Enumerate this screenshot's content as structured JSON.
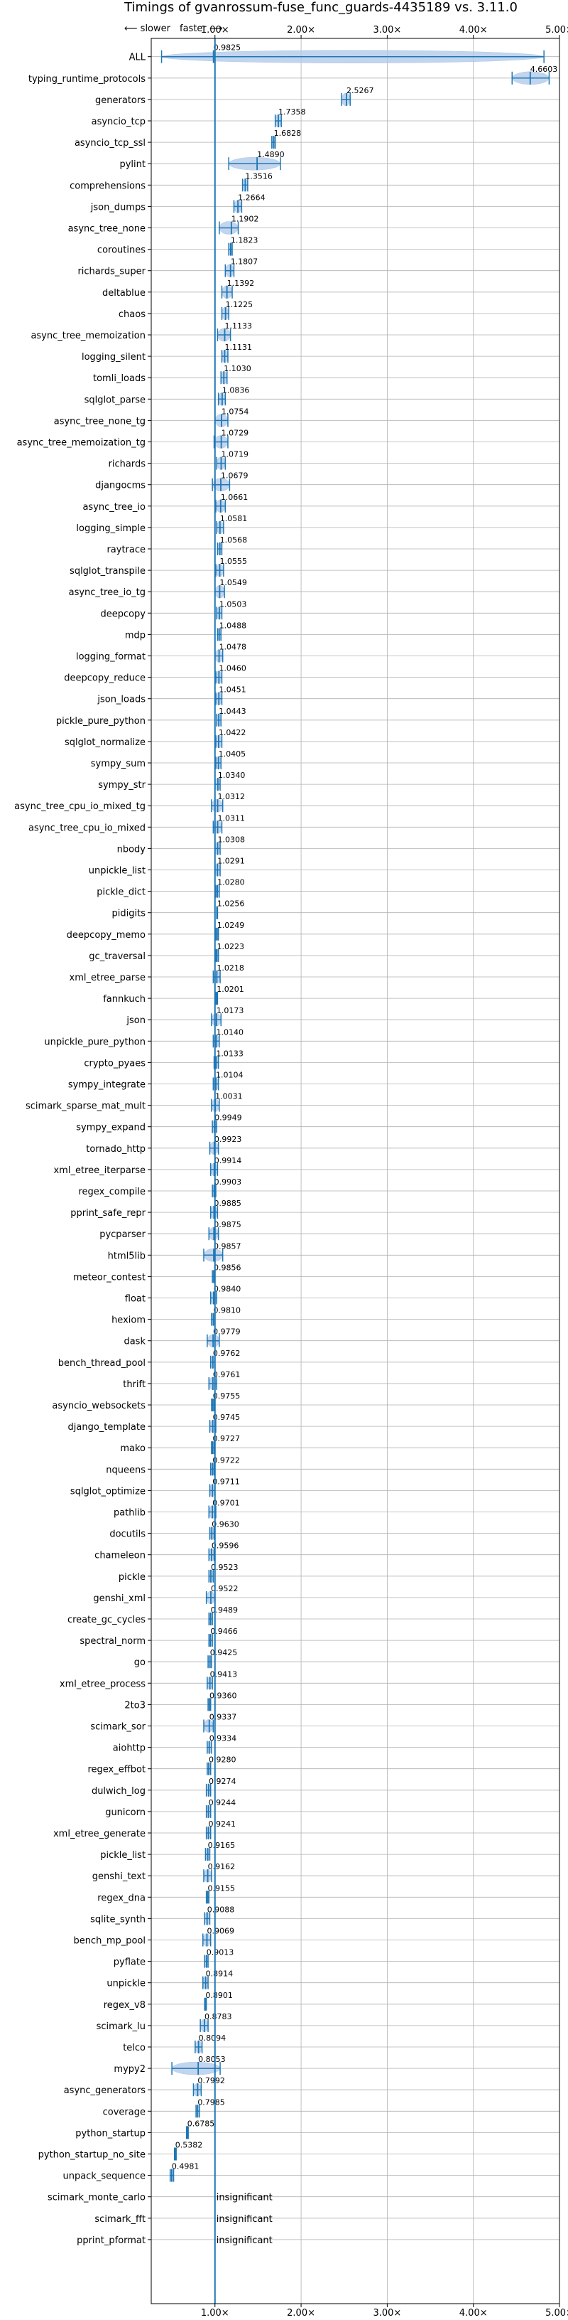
{
  "chart_data": {
    "type": "scatter",
    "title": "Timings of gvanrossum-fuse_func_guards-4435189 vs. 3.11.0",
    "direction_labels": {
      "slower": "⟵ slower",
      "faster": "faster ⟶"
    },
    "xlim": [
      0.26,
      5.0
    ],
    "x_ticks": [
      1.0,
      2.0,
      3.0,
      4.0,
      5.0
    ],
    "x_tick_labels": [
      "1.00×",
      "2.00×",
      "3.00×",
      "4.00×",
      "5.00×"
    ],
    "reference_line": 1.0,
    "grid": true,
    "colors": {
      "marker": "#1f77b4",
      "fill": "#aec7e8",
      "line": "#1f77b4",
      "grid": "#b0b0b0"
    },
    "benchmarks": [
      {
        "name": "ALL",
        "value": 0.9825,
        "label": "0.9825",
        "range": [
          0.38,
          4.82
        ]
      },
      {
        "name": "typing_runtime_protocols",
        "value": 4.6603,
        "label": "4.6603",
        "range": [
          4.45,
          4.88
        ]
      },
      {
        "name": "generators",
        "value": 2.5267,
        "label": "2.5267",
        "range": [
          2.47,
          2.57
        ]
      },
      {
        "name": "asyncio_tcp",
        "value": 1.7358,
        "label": "1.7358",
        "range": [
          1.7,
          1.77
        ]
      },
      {
        "name": "asyncio_tcp_ssl",
        "value": 1.6828,
        "label": "1.6828",
        "range": [
          1.66,
          1.7
        ]
      },
      {
        "name": "pylint",
        "value": 1.489,
        "label": "1.4890",
        "range": [
          1.16,
          1.76
        ]
      },
      {
        "name": "comprehensions",
        "value": 1.3516,
        "label": "1.3516",
        "range": [
          1.32,
          1.38
        ]
      },
      {
        "name": "json_dumps",
        "value": 1.2664,
        "label": "1.2664",
        "range": [
          1.22,
          1.31
        ]
      },
      {
        "name": "async_tree_none",
        "value": 1.1902,
        "label": "1.1902",
        "range": [
          1.05,
          1.27
        ]
      },
      {
        "name": "coroutines",
        "value": 1.1823,
        "label": "1.1823",
        "range": [
          1.16,
          1.2
        ]
      },
      {
        "name": "richards_super",
        "value": 1.1807,
        "label": "1.1807",
        "range": [
          1.12,
          1.22
        ]
      },
      {
        "name": "deltablue",
        "value": 1.1392,
        "label": "1.1392",
        "range": [
          1.08,
          1.2
        ]
      },
      {
        "name": "chaos",
        "value": 1.1225,
        "label": "1.1225",
        "range": [
          1.08,
          1.16
        ]
      },
      {
        "name": "async_tree_memoization",
        "value": 1.1133,
        "label": "1.1133",
        "range": [
          1.03,
          1.18
        ]
      },
      {
        "name": "logging_silent",
        "value": 1.1131,
        "label": "1.1131",
        "range": [
          1.08,
          1.15
        ]
      },
      {
        "name": "tomli_loads",
        "value": 1.103,
        "label": "1.1030",
        "range": [
          1.07,
          1.14
        ]
      },
      {
        "name": "sqlglot_parse",
        "value": 1.0836,
        "label": "1.0836",
        "range": [
          1.04,
          1.12
        ]
      },
      {
        "name": "async_tree_none_tg",
        "value": 1.0754,
        "label": "1.0754",
        "range": [
          1.0,
          1.15
        ]
      },
      {
        "name": "async_tree_memoization_tg",
        "value": 1.0729,
        "label": "1.0729",
        "range": [
          0.99,
          1.15
        ]
      },
      {
        "name": "richards",
        "value": 1.0719,
        "label": "1.0719",
        "range": [
          1.02,
          1.12
        ]
      },
      {
        "name": "djangocms",
        "value": 1.0679,
        "label": "1.0679",
        "range": [
          0.97,
          1.17
        ]
      },
      {
        "name": "async_tree_io",
        "value": 1.0661,
        "label": "1.0661",
        "range": [
          1.01,
          1.12
        ]
      },
      {
        "name": "logging_simple",
        "value": 1.0581,
        "label": "1.0581",
        "range": [
          1.02,
          1.1
        ]
      },
      {
        "name": "raytrace",
        "value": 1.0568,
        "label": "1.0568",
        "range": [
          1.03,
          1.08
        ]
      },
      {
        "name": "sqlglot_transpile",
        "value": 1.0555,
        "label": "1.0555",
        "range": [
          1.01,
          1.1
        ]
      },
      {
        "name": "async_tree_io_tg",
        "value": 1.0549,
        "label": "1.0549",
        "range": [
          1.0,
          1.11
        ]
      },
      {
        "name": "deepcopy",
        "value": 1.0503,
        "label": "1.0503",
        "range": [
          1.02,
          1.08
        ]
      },
      {
        "name": "mdp",
        "value": 1.0488,
        "label": "1.0488",
        "range": [
          1.03,
          1.07
        ]
      },
      {
        "name": "logging_format",
        "value": 1.0478,
        "label": "1.0478",
        "range": [
          1.0,
          1.09
        ]
      },
      {
        "name": "deepcopy_reduce",
        "value": 1.046,
        "label": "1.0460",
        "range": [
          1.01,
          1.08
        ]
      },
      {
        "name": "json_loads",
        "value": 1.0451,
        "label": "1.0451",
        "range": [
          1.01,
          1.08
        ]
      },
      {
        "name": "pickle_pure_python",
        "value": 1.0443,
        "label": "1.0443",
        "range": [
          1.02,
          1.07
        ]
      },
      {
        "name": "sqlglot_normalize",
        "value": 1.0422,
        "label": "1.0422",
        "range": [
          1.01,
          1.08
        ]
      },
      {
        "name": "sympy_sum",
        "value": 1.0405,
        "label": "1.0405",
        "range": [
          1.01,
          1.07
        ]
      },
      {
        "name": "sympy_str",
        "value": 1.034,
        "label": "1.0340",
        "range": [
          1.0,
          1.06
        ]
      },
      {
        "name": "async_tree_cpu_io_mixed_tg",
        "value": 1.0312,
        "label": "1.0312",
        "range": [
          0.96,
          1.09
        ]
      },
      {
        "name": "async_tree_cpu_io_mixed",
        "value": 1.0311,
        "label": "1.0311",
        "range": [
          0.98,
          1.08
        ]
      },
      {
        "name": "nbody",
        "value": 1.0308,
        "label": "1.0308",
        "range": [
          1.0,
          1.06
        ]
      },
      {
        "name": "unpickle_list",
        "value": 1.0291,
        "label": "1.0291",
        "range": [
          1.0,
          1.06
        ]
      },
      {
        "name": "pickle_dict",
        "value": 1.028,
        "label": "1.0280",
        "range": [
          1.01,
          1.05
        ]
      },
      {
        "name": "pidigits",
        "value": 1.0256,
        "label": "1.0256",
        "range": [
          1.02,
          1.03
        ]
      },
      {
        "name": "deepcopy_memo",
        "value": 1.0249,
        "label": "1.0249",
        "range": [
          1.01,
          1.04
        ]
      },
      {
        "name": "gc_traversal",
        "value": 1.0223,
        "label": "1.0223",
        "range": [
          1.01,
          1.04
        ]
      },
      {
        "name": "xml_etree_parse",
        "value": 1.0218,
        "label": "1.0218",
        "range": [
          0.98,
          1.06
        ]
      },
      {
        "name": "fannkuch",
        "value": 1.0201,
        "label": "1.0201",
        "range": [
          1.01,
          1.03
        ]
      },
      {
        "name": "json",
        "value": 1.0173,
        "label": "1.0173",
        "range": [
          0.96,
          1.07
        ]
      },
      {
        "name": "unpickle_pure_python",
        "value": 1.014,
        "label": "1.0140",
        "range": [
          0.98,
          1.05
        ]
      },
      {
        "name": "crypto_pyaes",
        "value": 1.0133,
        "label": "1.0133",
        "range": [
          0.99,
          1.04
        ]
      },
      {
        "name": "sympy_integrate",
        "value": 1.0104,
        "label": "1.0104",
        "range": [
          0.98,
          1.04
        ]
      },
      {
        "name": "scimark_sparse_mat_mult",
        "value": 1.0031,
        "label": "1.0031",
        "range": [
          0.96,
          1.05
        ]
      },
      {
        "name": "sympy_expand",
        "value": 0.9949,
        "label": "0.9949",
        "range": [
          0.97,
          1.02
        ]
      },
      {
        "name": "tornado_http",
        "value": 0.9923,
        "label": "0.9923",
        "range": [
          0.94,
          1.04
        ]
      },
      {
        "name": "xml_etree_iterparse",
        "value": 0.9914,
        "label": "0.9914",
        "range": [
          0.95,
          1.03
        ]
      },
      {
        "name": "regex_compile",
        "value": 0.9903,
        "label": "0.9903",
        "range": [
          0.97,
          1.01
        ]
      },
      {
        "name": "pprint_safe_repr",
        "value": 0.9885,
        "label": "0.9885",
        "range": [
          0.95,
          1.03
        ]
      },
      {
        "name": "pycparser",
        "value": 0.9875,
        "label": "0.9875",
        "range": [
          0.93,
          1.04
        ]
      },
      {
        "name": "html5lib",
        "value": 0.9857,
        "label": "0.9857",
        "range": [
          0.87,
          1.09
        ]
      },
      {
        "name": "meteor_contest",
        "value": 0.9856,
        "label": "0.9856",
        "range": [
          0.97,
          1.0
        ]
      },
      {
        "name": "float",
        "value": 0.984,
        "label": "0.9840",
        "range": [
          0.95,
          1.02
        ]
      },
      {
        "name": "hexiom",
        "value": 0.981,
        "label": "0.9810",
        "range": [
          0.96,
          1.0
        ]
      },
      {
        "name": "dask",
        "value": 0.9779,
        "label": "0.9779",
        "range": [
          0.91,
          1.05
        ]
      },
      {
        "name": "bench_thread_pool",
        "value": 0.9762,
        "label": "0.9762",
        "range": [
          0.95,
          1.0
        ]
      },
      {
        "name": "thrift",
        "value": 0.9761,
        "label": "0.9761",
        "range": [
          0.93,
          1.02
        ]
      },
      {
        "name": "asyncio_websockets",
        "value": 0.9755,
        "label": "0.9755",
        "range": [
          0.96,
          0.99
        ]
      },
      {
        "name": "django_template",
        "value": 0.9745,
        "label": "0.9745",
        "range": [
          0.94,
          1.01
        ]
      },
      {
        "name": "mako",
        "value": 0.9727,
        "label": "0.9727",
        "range": [
          0.96,
          0.99
        ]
      },
      {
        "name": "nqueens",
        "value": 0.9722,
        "label": "0.9722",
        "range": [
          0.95,
          0.99
        ]
      },
      {
        "name": "sqlglot_optimize",
        "value": 0.9711,
        "label": "0.9711",
        "range": [
          0.94,
          1.0
        ]
      },
      {
        "name": "pathlib",
        "value": 0.9701,
        "label": "0.9701",
        "range": [
          0.93,
          1.01
        ]
      },
      {
        "name": "docutils",
        "value": 0.963,
        "label": "0.9630",
        "range": [
          0.94,
          0.99
        ]
      },
      {
        "name": "chameleon",
        "value": 0.9596,
        "label": "0.9596",
        "range": [
          0.93,
          0.99
        ]
      },
      {
        "name": "pickle",
        "value": 0.9523,
        "label": "0.9523",
        "range": [
          0.93,
          0.98
        ]
      },
      {
        "name": "genshi_xml",
        "value": 0.9522,
        "label": "0.9522",
        "range": [
          0.9,
          1.0
        ]
      },
      {
        "name": "create_gc_cycles",
        "value": 0.9489,
        "label": "0.9489",
        "range": [
          0.93,
          0.97
        ]
      },
      {
        "name": "spectral_norm",
        "value": 0.9466,
        "label": "0.9466",
        "range": [
          0.93,
          0.97
        ]
      },
      {
        "name": "go",
        "value": 0.9425,
        "label": "0.9425",
        "range": [
          0.92,
          0.96
        ]
      },
      {
        "name": "xml_etree_process",
        "value": 0.9413,
        "label": "0.9413",
        "range": [
          0.91,
          0.97
        ]
      },
      {
        "name": "2to3",
        "value": 0.936,
        "label": "0.9360",
        "range": [
          0.92,
          0.95
        ]
      },
      {
        "name": "scimark_sor",
        "value": 0.9337,
        "label": "0.9337",
        "range": [
          0.87,
          0.98
        ]
      },
      {
        "name": "aiohttp",
        "value": 0.9334,
        "label": "0.9334",
        "range": [
          0.91,
          0.96
        ]
      },
      {
        "name": "regex_effbot",
        "value": 0.928,
        "label": "0.9280",
        "range": [
          0.91,
          0.95
        ]
      },
      {
        "name": "dulwich_log",
        "value": 0.9274,
        "label": "0.9274",
        "range": [
          0.9,
          0.95
        ]
      },
      {
        "name": "gunicorn",
        "value": 0.9244,
        "label": "0.9244",
        "range": [
          0.9,
          0.95
        ]
      },
      {
        "name": "xml_etree_generate",
        "value": 0.9241,
        "label": "0.9241",
        "range": [
          0.9,
          0.95
        ]
      },
      {
        "name": "pickle_list",
        "value": 0.9165,
        "label": "0.9165",
        "range": [
          0.89,
          0.94
        ]
      },
      {
        "name": "genshi_text",
        "value": 0.9162,
        "label": "0.9162",
        "range": [
          0.87,
          0.96
        ]
      },
      {
        "name": "regex_dna",
        "value": 0.9155,
        "label": "0.9155",
        "range": [
          0.9,
          0.93
        ]
      },
      {
        "name": "sqlite_synth",
        "value": 0.9088,
        "label": "0.9088",
        "range": [
          0.88,
          0.94
        ]
      },
      {
        "name": "bench_mp_pool",
        "value": 0.9069,
        "label": "0.9069",
        "range": [
          0.86,
          0.95
        ]
      },
      {
        "name": "pyflate",
        "value": 0.9013,
        "label": "0.9013",
        "range": [
          0.88,
          0.92
        ]
      },
      {
        "name": "unpickle",
        "value": 0.8914,
        "label": "0.8914",
        "range": [
          0.86,
          0.92
        ]
      },
      {
        "name": "regex_v8",
        "value": 0.8901,
        "label": "0.8901",
        "range": [
          0.88,
          0.9
        ]
      },
      {
        "name": "scimark_lu",
        "value": 0.8783,
        "label": "0.8783",
        "range": [
          0.83,
          0.92
        ]
      },
      {
        "name": "telco",
        "value": 0.8094,
        "label": "0.8094",
        "range": [
          0.77,
          0.85
        ]
      },
      {
        "name": "mypy2",
        "value": 0.8053,
        "label": "0.8053",
        "range": [
          0.5,
          1.06
        ]
      },
      {
        "name": "async_generators",
        "value": 0.7992,
        "label": "0.7992",
        "range": [
          0.75,
          0.84
        ]
      },
      {
        "name": "coverage",
        "value": 0.7985,
        "label": "0.7985",
        "range": [
          0.78,
          0.82
        ]
      },
      {
        "name": "python_startup",
        "value": 0.6785,
        "label": "0.6785",
        "range": [
          0.67,
          0.69
        ]
      },
      {
        "name": "python_startup_no_site",
        "value": 0.5382,
        "label": "0.5382",
        "range": [
          0.53,
          0.55
        ]
      },
      {
        "name": "unpack_sequence",
        "value": 0.4981,
        "label": "0.4981",
        "range": [
          0.48,
          0.52
        ]
      },
      {
        "name": "scimark_monte_carlo",
        "value": null,
        "label": "insignificant",
        "range": null
      },
      {
        "name": "scimark_fft",
        "value": null,
        "label": "insignificant",
        "range": null
      },
      {
        "name": "pprint_pformat",
        "value": null,
        "label": "insignificant",
        "range": null
      }
    ]
  }
}
